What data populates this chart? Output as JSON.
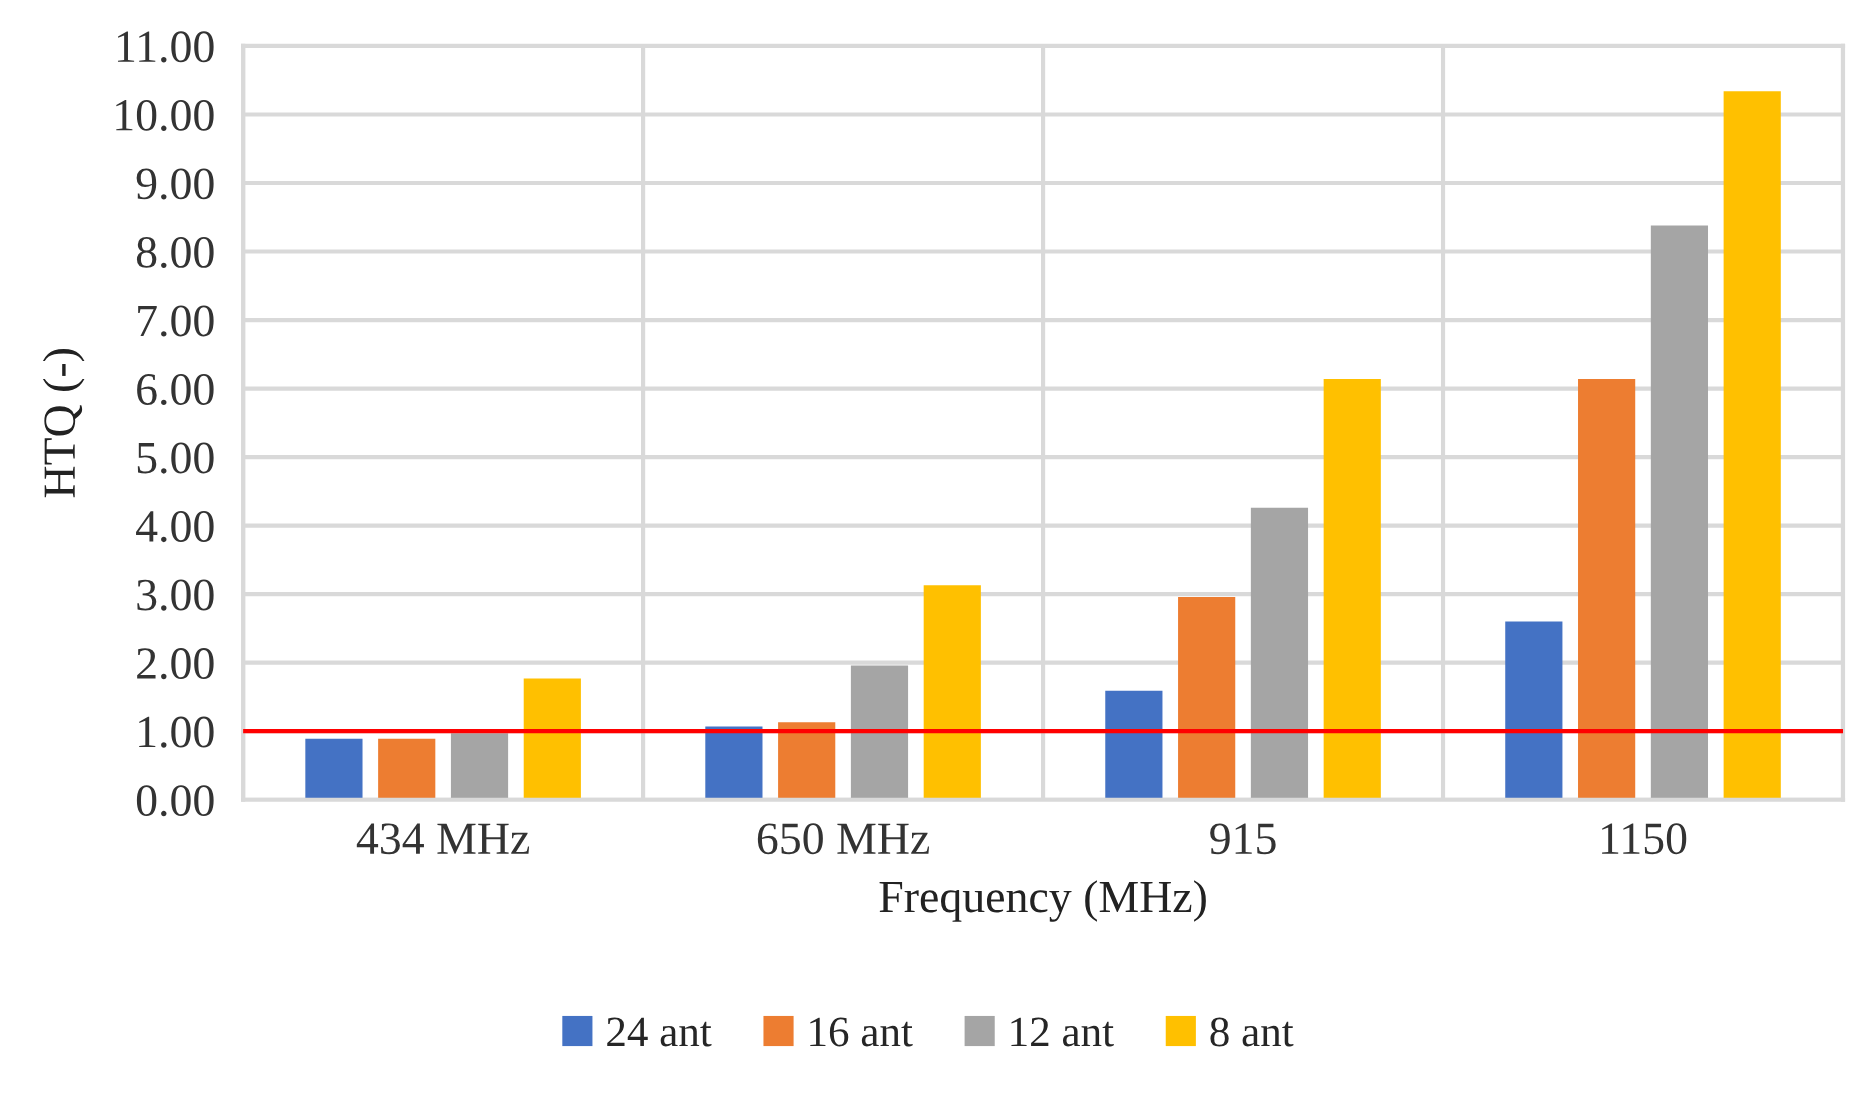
{
  "chart_data": {
    "type": "bar",
    "xlabel": "Frequency (MHz)",
    "ylabel": "HTQ (-)",
    "categories": [
      "434 MHz",
      "650 MHz",
      "915",
      "1150"
    ],
    "series": [
      {
        "name": "24 ant",
        "color": "#4472c4",
        "values": [
          0.89,
          1.07,
          1.59,
          2.6
        ]
      },
      {
        "name": "16 ant",
        "color": "#ed7d31",
        "values": [
          0.89,
          1.13,
          2.96,
          6.14
        ]
      },
      {
        "name": "12 ant",
        "color": "#a5a5a5",
        "values": [
          0.97,
          1.96,
          4.26,
          8.38
        ]
      },
      {
        "name": "8 ant",
        "color": "#ffc000",
        "values": [
          1.77,
          3.13,
          6.14,
          10.34
        ]
      }
    ],
    "ylim": [
      0,
      11
    ],
    "yticks": [
      {
        "value": 0,
        "label": "0.00"
      },
      {
        "value": 1,
        "label": "1.00"
      },
      {
        "value": 2,
        "label": "2.00"
      },
      {
        "value": 3,
        "label": "3.00"
      },
      {
        "value": 4,
        "label": "4.00"
      },
      {
        "value": 5,
        "label": "5.00"
      },
      {
        "value": 6,
        "label": "6.00"
      },
      {
        "value": 7,
        "label": "7.00"
      },
      {
        "value": 8,
        "label": "8.00"
      },
      {
        "value": 9,
        "label": "9.00"
      },
      {
        "value": 10,
        "label": "10.00"
      },
      {
        "value": 11,
        "label": "11.00"
      }
    ],
    "ref_lines": [
      {
        "axis": "y",
        "value": 1,
        "color": "#ff0000"
      }
    ],
    "grid": true,
    "legend": "bottom"
  }
}
